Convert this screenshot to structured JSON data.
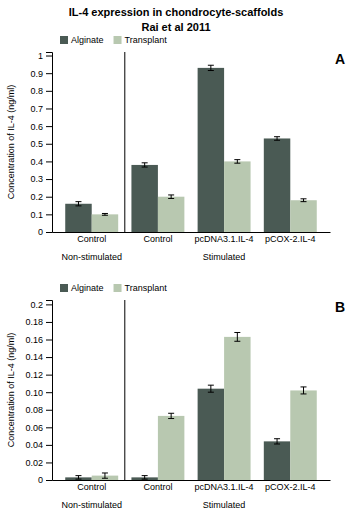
{
  "chart_data": [
    {
      "type": "bar",
      "title": "IL-4 expression in chondrocyte-scaffolds",
      "subtitle": "Rai et al 2011",
      "categories": [
        "Control",
        "Control",
        "pcDNA3.1.IL-4",
        "pCOX-2.IL-4"
      ],
      "series": [
        {
          "name": "Alginate",
          "color": "#4a5a54",
          "values": [
            0.16,
            0.38,
            0.93,
            0.53
          ],
          "errors": [
            0.012,
            0.012,
            0.015,
            0.01
          ]
        },
        {
          "name": "Transplant",
          "color": "#b8c8b0",
          "values": [
            0.1,
            0.2,
            0.4,
            0.18
          ],
          "errors": [
            0.005,
            0.01,
            0.01,
            0.008
          ]
        }
      ],
      "y_label": "Concentration of IL-4 (ng/ml)",
      "ylim": [
        0,
        1.02
      ],
      "yticks": [
        0,
        0.1,
        0.2,
        0.3,
        0.4,
        0.5,
        0.6,
        0.7,
        0.8,
        0.9,
        1
      ],
      "annotations": [
        "A",
        "Non-stimulated",
        "Stimulated"
      ],
      "legend": "top",
      "grid": false
    },
    {
      "type": "bar",
      "categories": [
        "Control",
        "Control",
        "pcDNA3.1.IL-4",
        "pCOX-2.IL-4"
      ],
      "series": [
        {
          "name": "Alginate",
          "color": "#4a5a54",
          "values": [
            0.003,
            0.003,
            0.104,
            0.044
          ],
          "errors": [
            0.002,
            0.002,
            0.004,
            0.003
          ]
        },
        {
          "name": "Transplant",
          "color": "#b8c8b0",
          "values": [
            0.005,
            0.073,
            0.163,
            0.102
          ],
          "errors": [
            0.003,
            0.003,
            0.005,
            0.004
          ]
        }
      ],
      "y_label": "Concentration of IL-4 (ng/ml)",
      "ylim": [
        0,
        0.205
      ],
      "yticks": [
        0,
        0.02,
        0.04,
        0.06,
        0.08,
        {
          "value": 0.1,
          "label": "0.10"
        },
        0.12,
        0.14,
        0.16,
        0.18,
        0.2
      ],
      "annotations": [
        "B",
        "Non-stimulated",
        "Stimulated"
      ],
      "legend": "top",
      "grid": false
    }
  ]
}
